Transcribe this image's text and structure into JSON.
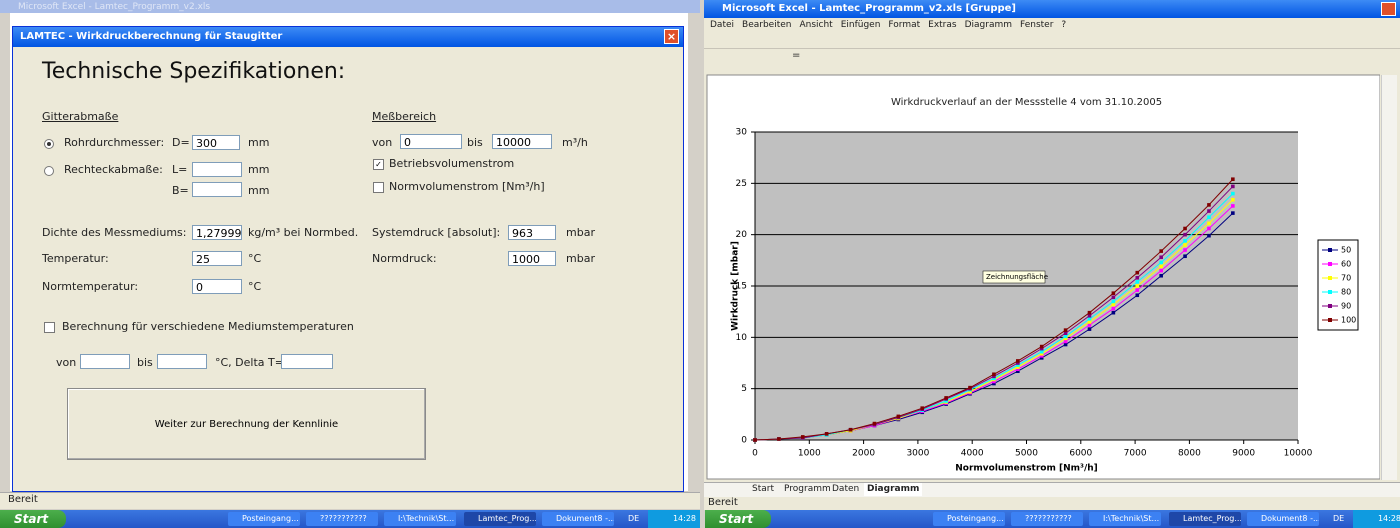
{
  "left_window": {
    "title": "Microsoft Excel - Lamtec_Programm_v2.xls",
    "status": "Bereit",
    "dialog": {
      "title": "LAMTEC - Wirkdruckberechnung für Staugitter",
      "heading": "Technische Spezifikationen:",
      "grid_section": "Gitterabmaße",
      "pipe_label": "Rohrdurchmesser:",
      "d_label": "D=",
      "d_value": "300",
      "d_unit": "mm",
      "rect_label": "Rechteckabmaße:",
      "l_label": "L=",
      "l_unit": "mm",
      "b_label": "B=",
      "b_unit": "mm",
      "range_section": "Meßbereich",
      "range_from": "von",
      "range_from_value": "0",
      "range_to": "bis",
      "range_to_value": "10000",
      "range_unit": "m³/h",
      "operating_flow": "Betriebsvolumenstrom",
      "norm_flow": "Normvolumenstrom [Nm³/h]",
      "density_label": "Dichte des Messmediums:",
      "density_value": "1,27999",
      "density_unit": "kg/m³ bei Normbed.",
      "temp_label": "Temperatur:",
      "temp_value": "25",
      "temp_unit": "°C",
      "norm_temp_label": "Normtemperatur:",
      "norm_temp_value": "0",
      "norm_temp_unit": "°C",
      "sys_pressure_label": "Systemdruck [absolut]:",
      "sys_pressure_value": "963",
      "sys_pressure_unit": "mbar",
      "norm_pressure_label": "Normdruck:",
      "norm_pressure_value": "1000",
      "norm_pressure_unit": "mbar",
      "multi_temp": "Berechnung für verschiedene Mediumstemperaturen",
      "mt_from": "von",
      "mt_to": "bis",
      "mt_delta": "°C, Delta T=",
      "button": "Weiter zur Berechnung der Kennlinie"
    }
  },
  "right_window": {
    "title": "Microsoft Excel - Lamtec_Programm_v2.xls [Gruppe]",
    "menu": [
      "Datei",
      "Bearbeiten",
      "Ansicht",
      "Einfügen",
      "Format",
      "Extras",
      "Diagramm",
      "Fenster",
      "?"
    ],
    "formula": "=",
    "sheet_tabs": [
      "Start",
      "Programm",
      "Daten",
      "Diagramm"
    ],
    "status": "Bereit",
    "tooltip": "Zeichnungsfläche"
  },
  "taskbar": {
    "start": "Start",
    "items": [
      "Posteingang...",
      "???????????",
      "I:\\Technik\\St...",
      "Lamtec_Prog...",
      "Dokument8 -..."
    ],
    "language": "DE",
    "clock": "14:28"
  },
  "chart_data": {
    "type": "line",
    "title": "Wirkdruckverlauf an der Messstelle 4 vom 31.10.2005",
    "x_label": "Normvolumenstrom [Nm³/h]",
    "y_label": "Wirkdruck [mbar]",
    "x": [
      0,
      440,
      880,
      1320,
      1760,
      2200,
      2640,
      3080,
      3520,
      3960,
      4400,
      4840,
      5280,
      5720,
      6160,
      6600,
      7040,
      7480,
      7920,
      8360,
      8800
    ],
    "series": [
      {
        "name": "50",
        "color": "#000080",
        "values": [
          0,
          0.1,
          0.2,
          0.5,
          0.9,
          1.4,
          2.0,
          2.7,
          3.5,
          4.5,
          5.5,
          6.7,
          8.0,
          9.3,
          10.8,
          12.4,
          14.1,
          16.0,
          17.9,
          19.9,
          22.1
        ]
      },
      {
        "name": "60",
        "color": "#ff00ff",
        "values": [
          0,
          0.1,
          0.2,
          0.5,
          0.9,
          1.4,
          2.1,
          2.8,
          3.6,
          4.6,
          5.7,
          6.9,
          8.2,
          9.6,
          11.2,
          12.8,
          14.6,
          16.5,
          18.5,
          20.6,
          22.8
        ]
      },
      {
        "name": "70",
        "color": "#ffff00",
        "values": [
          0,
          0.1,
          0.2,
          0.5,
          0.9,
          1.5,
          2.1,
          2.9,
          3.7,
          4.7,
          5.9,
          7.1,
          8.4,
          9.9,
          11.5,
          13.2,
          15.0,
          16.9,
          19.0,
          21.1,
          23.4
        ]
      },
      {
        "name": "80",
        "color": "#00ffff",
        "values": [
          0,
          0.1,
          0.2,
          0.5,
          1.0,
          1.5,
          2.2,
          2.9,
          3.8,
          4.9,
          6.0,
          7.3,
          8.6,
          10.1,
          11.8,
          13.5,
          15.4,
          17.3,
          19.4,
          21.7,
          24.0
        ]
      },
      {
        "name": "90",
        "color": "#800080",
        "values": [
          0,
          0.1,
          0.2,
          0.6,
          1.0,
          1.5,
          2.2,
          3.0,
          4.0,
          5.0,
          6.2,
          7.5,
          8.9,
          10.4,
          12.1,
          13.9,
          15.8,
          17.8,
          20.0,
          22.3,
          24.7
        ]
      },
      {
        "name": "100",
        "color": "#800000",
        "values": [
          0,
          0.1,
          0.3,
          0.6,
          1.0,
          1.6,
          2.3,
          3.1,
          4.1,
          5.1,
          6.4,
          7.7,
          9.1,
          10.7,
          12.4,
          14.3,
          16.3,
          18.4,
          20.6,
          22.9,
          25.4
        ]
      }
    ],
    "xlim": [
      0,
      10000
    ],
    "xticks": [
      0,
      1000,
      2000,
      3000,
      4000,
      5000,
      6000,
      7000,
      8000,
      9000,
      10000
    ],
    "ylim": [
      0,
      30
    ],
    "yticks": [
      0,
      5,
      10,
      15,
      20,
      25,
      30
    ],
    "grid": true,
    "plot_background": "#c0c0c0",
    "legend": "right"
  }
}
